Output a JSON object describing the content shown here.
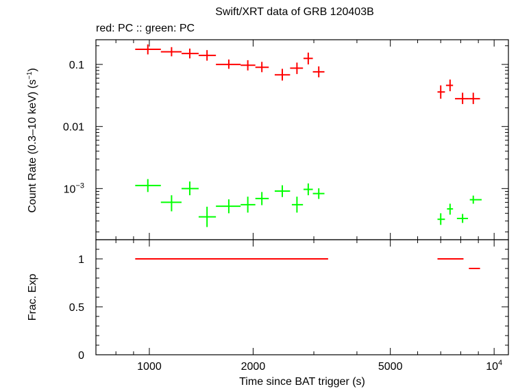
{
  "title": "Swift/XRT data of GRB 120403B",
  "subtitle": "red: PC  :: green: PC",
  "colors": {
    "red": "#ff0000",
    "green": "#00ff00",
    "axis": "#000000"
  },
  "chart_data": [
    {
      "type": "scatter",
      "panel": "top",
      "ylabel": "Count Rate (0.3–10 keV) (s",
      "ylabel_sup": "−1",
      "ylabel_end": ")",
      "xscale": "log",
      "yscale": "log",
      "xlim": [
        700,
        11000
      ],
      "ylim": [
        0.00015,
        0.25
      ],
      "yticks": [
        {
          "value": 0.1,
          "label": "0.1"
        },
        {
          "value": 0.01,
          "label": "0.01"
        },
        {
          "value": 0.001,
          "label": "10",
          "sup": "−3"
        }
      ],
      "series": [
        {
          "color": "#ff0000",
          "points": [
            {
              "x": 990,
              "xlo": 910,
              "xhi": 1080,
              "y": 0.175,
              "ylo": 0.145,
              "yhi": 0.21
            },
            {
              "x": 1160,
              "xlo": 1080,
              "xhi": 1240,
              "y": 0.16,
              "ylo": 0.135,
              "yhi": 0.19
            },
            {
              "x": 1310,
              "xlo": 1240,
              "xhi": 1390,
              "y": 0.15,
              "ylo": 0.125,
              "yhi": 0.18
            },
            {
              "x": 1470,
              "xlo": 1390,
              "xhi": 1560,
              "y": 0.14,
              "ylo": 0.115,
              "yhi": 0.17
            },
            {
              "x": 1700,
              "xlo": 1560,
              "xhi": 1840,
              "y": 0.1,
              "ylo": 0.085,
              "yhi": 0.12
            },
            {
              "x": 1930,
              "xlo": 1840,
              "xhi": 2030,
              "y": 0.097,
              "ylo": 0.08,
              "yhi": 0.117
            },
            {
              "x": 2120,
              "xlo": 2030,
              "xhi": 2220,
              "y": 0.09,
              "ylo": 0.075,
              "yhi": 0.11
            },
            {
              "x": 2430,
              "xlo": 2310,
              "xhi": 2560,
              "y": 0.068,
              "ylo": 0.055,
              "yhi": 0.085
            },
            {
              "x": 2680,
              "xlo": 2560,
              "xhi": 2790,
              "y": 0.087,
              "ylo": 0.07,
              "yhi": 0.107
            },
            {
              "x": 2890,
              "xlo": 2800,
              "xhi": 2980,
              "y": 0.125,
              "ylo": 0.1,
              "yhi": 0.155
            },
            {
              "x": 3100,
              "xlo": 2980,
              "xhi": 3220,
              "y": 0.076,
              "ylo": 0.062,
              "yhi": 0.093
            },
            {
              "x": 7000,
              "xlo": 6850,
              "xhi": 7200,
              "y": 0.036,
              "ylo": 0.028,
              "yhi": 0.046
            },
            {
              "x": 7450,
              "xlo": 7250,
              "xhi": 7600,
              "y": 0.046,
              "ylo": 0.037,
              "yhi": 0.057
            },
            {
              "x": 8100,
              "xlo": 7700,
              "xhi": 8450,
              "y": 0.028,
              "ylo": 0.023,
              "yhi": 0.035
            },
            {
              "x": 8700,
              "xlo": 8450,
              "xhi": 9100,
              "y": 0.028,
              "ylo": 0.023,
              "yhi": 0.035
            }
          ]
        },
        {
          "color": "#00ff00",
          "points": [
            {
              "x": 990,
              "xlo": 910,
              "xhi": 1080,
              "y": 0.00112,
              "ylo": 0.00088,
              "yhi": 0.00142
            },
            {
              "x": 1160,
              "xlo": 1080,
              "xhi": 1240,
              "y": 0.0006,
              "ylo": 0.00043,
              "yhi": 0.00078
            },
            {
              "x": 1310,
              "xlo": 1240,
              "xhi": 1390,
              "y": 0.001,
              "ylo": 0.00078,
              "yhi": 0.0013
            },
            {
              "x": 1470,
              "xlo": 1390,
              "xhi": 1560,
              "y": 0.00035,
              "ylo": 0.00024,
              "yhi": 0.00051
            },
            {
              "x": 1700,
              "xlo": 1560,
              "xhi": 1840,
              "y": 0.00052,
              "ylo": 0.0004,
              "yhi": 0.00067
            },
            {
              "x": 1930,
              "xlo": 1840,
              "xhi": 2030,
              "y": 0.00055,
              "ylo": 0.00041,
              "yhi": 0.00074
            },
            {
              "x": 2120,
              "xlo": 2030,
              "xhi": 2220,
              "y": 0.00069,
              "ylo": 0.00054,
              "yhi": 0.00088
            },
            {
              "x": 2430,
              "xlo": 2310,
              "xhi": 2560,
              "y": 0.00091,
              "ylo": 0.00073,
              "yhi": 0.00113
            },
            {
              "x": 2680,
              "xlo": 2590,
              "xhi": 2790,
              "y": 0.00055,
              "ylo": 0.00041,
              "yhi": 0.00074
            },
            {
              "x": 2890,
              "xlo": 2800,
              "xhi": 2980,
              "y": 0.00097,
              "ylo": 0.00078,
              "yhi": 0.00121
            },
            {
              "x": 3100,
              "xlo": 2980,
              "xhi": 3220,
              "y": 0.00083,
              "ylo": 0.00068,
              "yhi": 0.00101
            },
            {
              "x": 7000,
              "xlo": 6850,
              "xhi": 7200,
              "y": 0.00032,
              "ylo": 0.00026,
              "yhi": 0.0004
            },
            {
              "x": 7450,
              "xlo": 7300,
              "xhi": 7600,
              "y": 0.00047,
              "ylo": 0.00038,
              "yhi": 0.00057
            },
            {
              "x": 8100,
              "xlo": 7800,
              "xhi": 8400,
              "y": 0.00033,
              "ylo": 0.00028,
              "yhi": 0.00039
            },
            {
              "x": 8700,
              "xlo": 8500,
              "xhi": 9200,
              "y": 0.00066,
              "ylo": 0.00057,
              "yhi": 0.00077
            }
          ]
        }
      ]
    },
    {
      "type": "line",
      "panel": "bottom",
      "xlabel": "Time since BAT trigger (s)",
      "ylabel": "Frac. Exp",
      "xscale": "log",
      "xlim": [
        700,
        11000
      ],
      "ylim": [
        0,
        1.2
      ],
      "yticks": [
        {
          "value": 0,
          "label": "0"
        },
        {
          "value": 0.5,
          "label": "0.5"
        },
        {
          "value": 1,
          "label": "1"
        }
      ],
      "xticks": [
        {
          "value": 1000,
          "label": "1000"
        },
        {
          "value": 2000,
          "label": "2000"
        },
        {
          "value": 5000,
          "label": "5000"
        },
        {
          "value": 10000,
          "label": "10",
          "sup": "4"
        }
      ],
      "segments": [
        {
          "x0": 910,
          "x1": 3300,
          "y": 1.0,
          "color": "#ff0000"
        },
        {
          "x0": 6850,
          "x1": 8150,
          "y": 1.0,
          "color": "#ff0000"
        },
        {
          "x0": 8450,
          "x1": 9100,
          "y": 0.9,
          "color": "#ff0000"
        }
      ]
    }
  ]
}
